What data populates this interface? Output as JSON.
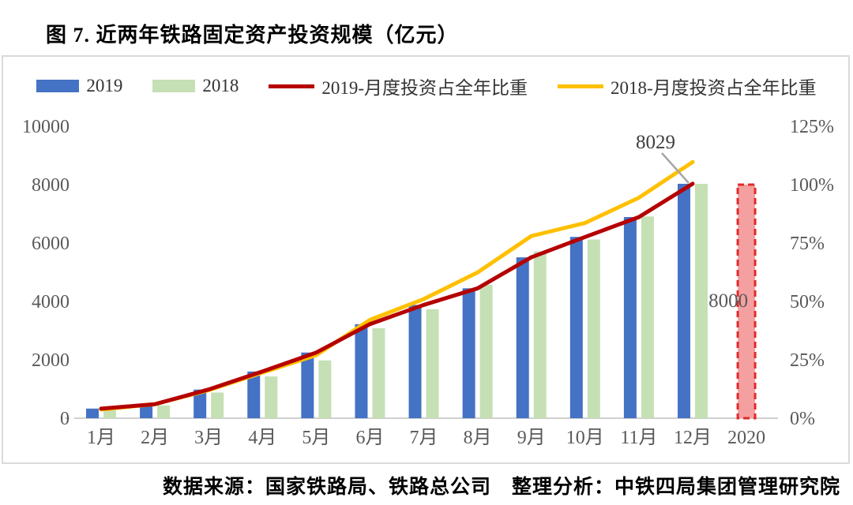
{
  "title": "图 7. 近两年铁路固定资产投资规模（亿元）",
  "source_note": "数据来源：国家铁路局、铁路总公司　整理分析：中铁四局集团管理研究院",
  "legend": [
    {
      "label": "2019",
      "type": "swatch",
      "color": "#4472C4"
    },
    {
      "label": "2018",
      "type": "swatch",
      "color": "#C5E0B4"
    },
    {
      "label": "2019-月度投资占全年比重",
      "type": "line",
      "color": "#B50000"
    },
    {
      "label": "2018-月度投资占全年比重",
      "type": "line",
      "color": "#FFC000"
    }
  ],
  "colors": {
    "bar_2019": "#4472C4",
    "bar_2018": "#C5E0B4",
    "line_2019_pct": "#B50000",
    "line_2018_pct": "#FFC000",
    "bar_2020_fill": "#F5A0A0",
    "bar_2020_border": "#E02B2B",
    "axis_text": "#595959",
    "axis_line": "#d0d0d0",
    "annotation_leader": "#A6A6A6",
    "annotation_text": "#404040"
  },
  "annotations": {
    "dec_2019_value_label": "8029",
    "plan_2020_label": "8000"
  },
  "chart_data": {
    "type": "bar",
    "subtype": "bar+line combo, dual axis",
    "title": "图 7. 近两年铁路固定资产投资规模（亿元）",
    "categories": [
      "1月",
      "2月",
      "3月",
      "4月",
      "5月",
      "6月",
      "7月",
      "8月",
      "9月",
      "10月",
      "11月",
      "12月",
      "2020"
    ],
    "left_axis": {
      "ticks": [
        "0",
        "2000",
        "4000",
        "6000",
        "8000",
        "10000"
      ],
      "range": [
        0,
        10000
      ]
    },
    "right_axis": {
      "ticks": [
        "0%",
        "25%",
        "50%",
        "75%",
        "100%",
        "125%"
      ],
      "range": [
        0,
        125
      ]
    },
    "grid": "off",
    "legend_position": "top",
    "series": [
      {
        "name": "2019",
        "type": "bar",
        "axis": "left",
        "values": [
          330,
          480,
          980,
          1600,
          2250,
          3220,
          3880,
          4450,
          5510,
          6210,
          6890,
          8029
        ]
      },
      {
        "name": "2018",
        "type": "bar",
        "axis": "left",
        "values": [
          270,
          440,
          880,
          1430,
          1980,
          3080,
          3730,
          4570,
          5710,
          6120,
          6910,
          8028
        ]
      },
      {
        "name": "2019-月度投资占全年比重",
        "type": "line",
        "axis": "right",
        "unit": "%",
        "values": [
          4.1,
          6.0,
          12.3,
          20.0,
          28.1,
          40.3,
          48.5,
          55.6,
          68.9,
          77.6,
          86.1,
          100.4
        ]
      },
      {
        "name": "2018-月度投资占全年比重",
        "type": "line",
        "axis": "right",
        "unit": "%",
        "values": [
          3.7,
          6.0,
          12.0,
          19.5,
          27.0,
          42.1,
          51.0,
          62.4,
          78.0,
          83.6,
          94.4,
          109.7
        ]
      }
    ],
    "special_bar": {
      "category": "2020",
      "value": 8000,
      "label": "8000",
      "style": "dashed-outline"
    }
  }
}
